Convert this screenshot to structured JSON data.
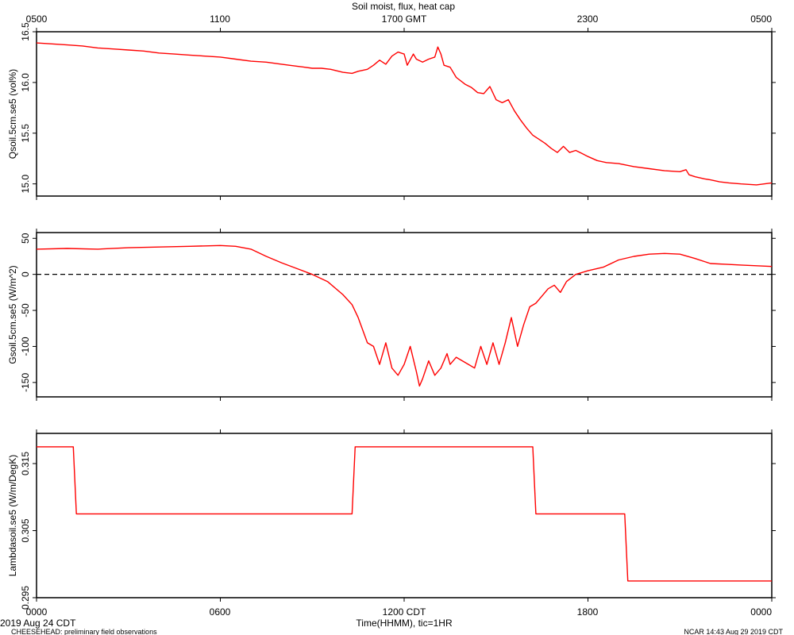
{
  "figure": {
    "title": "Soil moist, flux, heat cap",
    "date_label": "2019 Aug 24 CDT",
    "footer_left": "CHEESEHEAD: preliminary field observations",
    "footer_right": "NCAR 14:43 Aug 29 2019 CDT",
    "x_axis_title": "Time(HHMM), tic=1HR",
    "top_axis_ticks": [
      "0500",
      "1100",
      "1700 GMT",
      "2300",
      "0500"
    ],
    "bottom_axis_ticks": [
      "0000",
      "0600",
      "1200 CDT",
      "1800",
      "0000"
    ]
  },
  "colors": {
    "series": "#ff0000",
    "axis": "#000000",
    "zero_line": "#000000",
    "background": "#ffffff"
  },
  "chart_data": [
    {
      "type": "line",
      "ylabel": "Qsoil.5cm.se5 (vol%)",
      "ylim": [
        14.88,
        16.5
      ],
      "ytick_values": [
        15.0,
        15.5,
        16.0,
        16.5
      ],
      "ytick_labels": [
        "15.0",
        "15.5",
        "16.0",
        "16.5"
      ],
      "x_hours": [
        0,
        0.5,
        1,
        1.5,
        2,
        2.5,
        3,
        3.5,
        4,
        4.5,
        5,
        5.5,
        6,
        6.5,
        7,
        7.5,
        8,
        8.5,
        9,
        9.3,
        9.6,
        10,
        10.3,
        10.5,
        10.8,
        11,
        11.2,
        11.4,
        11.6,
        11.8,
        12,
        12.1,
        12.3,
        12.4,
        12.6,
        12.8,
        13,
        13.1,
        13.2,
        13.3,
        13.5,
        13.7,
        14,
        14.2,
        14.4,
        14.6,
        14.8,
        15,
        15.2,
        15.4,
        15.6,
        15.8,
        16,
        16.2,
        16.4,
        16.6,
        16.8,
        17,
        17.2,
        17.4,
        17.6,
        17.8,
        18,
        18.3,
        18.6,
        19,
        19.5,
        20,
        20.5,
        21,
        21.2,
        21.3,
        21.5,
        21.8,
        22,
        22.3,
        22.6,
        23,
        23.5,
        24
      ],
      "series": [
        {
          "values": [
            16.39,
            16.38,
            16.37,
            16.36,
            16.34,
            16.33,
            16.32,
            16.31,
            16.29,
            16.28,
            16.27,
            16.26,
            16.25,
            16.23,
            16.21,
            16.2,
            16.18,
            16.16,
            16.14,
            16.14,
            16.13,
            16.1,
            16.09,
            16.11,
            16.13,
            16.17,
            16.22,
            16.18,
            16.26,
            16.3,
            16.28,
            16.17,
            16.28,
            16.23,
            16.2,
            16.23,
            16.25,
            16.35,
            16.28,
            16.17,
            16.15,
            16.05,
            15.98,
            15.95,
            15.9,
            15.89,
            15.96,
            15.83,
            15.8,
            15.83,
            15.72,
            15.63,
            15.55,
            15.48,
            15.44,
            15.4,
            15.35,
            15.31,
            15.37,
            15.31,
            15.33,
            15.3,
            15.27,
            15.23,
            15.21,
            15.2,
            15.17,
            15.15,
            15.13,
            15.12,
            15.14,
            15.09,
            15.07,
            15.05,
            15.04,
            15.02,
            15.01,
            15.0,
            14.99,
            15.01
          ]
        }
      ]
    },
    {
      "type": "line",
      "ylabel": "Gsoil.5cm.se5 (W/m^2)",
      "ylim": [
        -170,
        58
      ],
      "ytick_values": [
        -150,
        -100,
        -50,
        0,
        50
      ],
      "ytick_labels": [
        "-150",
        "-100",
        "-50",
        "0",
        "50"
      ],
      "zero_line": true,
      "x_hours": [
        0,
        1,
        2,
        3,
        4,
        5,
        6,
        6.5,
        7,
        7.5,
        8,
        8.5,
        9,
        9.5,
        10,
        10.3,
        10.5,
        10.8,
        11,
        11.2,
        11.4,
        11.6,
        11.8,
        12,
        12.2,
        12.4,
        12.5,
        12.6,
        12.8,
        13,
        13.2,
        13.4,
        13.5,
        13.7,
        13.9,
        14.1,
        14.3,
        14.5,
        14.7,
        14.8,
        14.9,
        15.1,
        15.3,
        15.5,
        15.7,
        15.9,
        16.1,
        16.3,
        16.5,
        16.7,
        16.9,
        17.1,
        17.3,
        17.6,
        18,
        18.5,
        19,
        19.5,
        20,
        20.5,
        21,
        21.5,
        22,
        22.5,
        23,
        23.5,
        24
      ],
      "series": [
        {
          "values": [
            35,
            36,
            35,
            37,
            38,
            39,
            40,
            39,
            35,
            25,
            16,
            8,
            0,
            -10,
            -28,
            -42,
            -60,
            -95,
            -100,
            -125,
            -95,
            -130,
            -140,
            -125,
            -100,
            -135,
            -155,
            -145,
            -120,
            -140,
            -130,
            -110,
            -125,
            -115,
            -120,
            -125,
            -130,
            -100,
            -125,
            -110,
            -95,
            -125,
            -95,
            -60,
            -100,
            -70,
            -45,
            -40,
            -30,
            -20,
            -15,
            -25,
            -10,
            0,
            5,
            10,
            20,
            25,
            28,
            29,
            28,
            22,
            15,
            14,
            13,
            12,
            11
          ]
        }
      ]
    },
    {
      "type": "line",
      "ylabel": "Lambdasoil.se5 (W/m/DegK)",
      "ylim": [
        0.295,
        0.3195
      ],
      "ytick_values": [
        0.295,
        0.305,
        0.315
      ],
      "ytick_labels": [
        "0.295",
        "0.305",
        "0.315"
      ],
      "x_hours": [
        0,
        1.2,
        1.3,
        10.3,
        10.4,
        16.2,
        16.3,
        19.2,
        19.3,
        24
      ],
      "series": [
        {
          "values": [
            0.3175,
            0.3175,
            0.3075,
            0.3075,
            0.3175,
            0.3175,
            0.3075,
            0.3075,
            0.2975,
            0.2975
          ]
        }
      ]
    }
  ]
}
